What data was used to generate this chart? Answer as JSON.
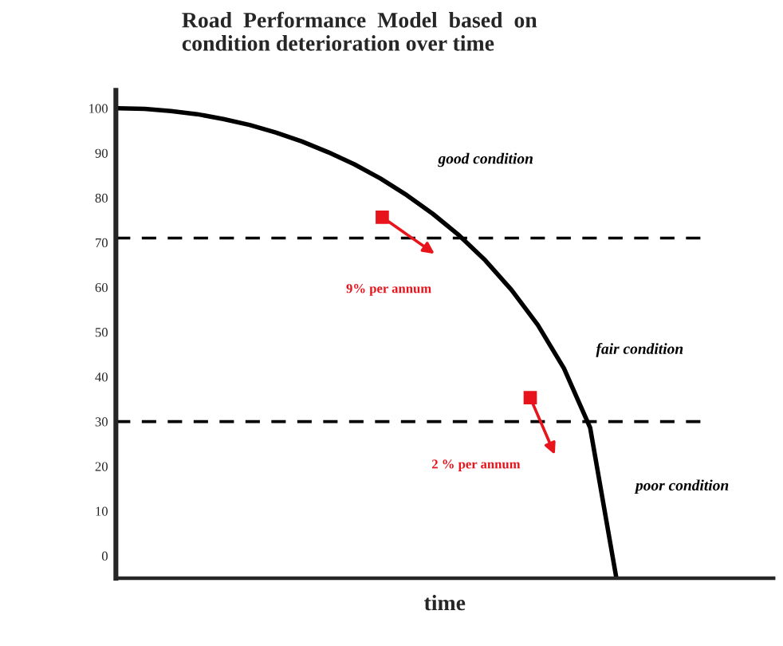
{
  "chart_data": {
    "type": "line",
    "title": "Road  Performance  Model  based  on\ncondition deterioration over time",
    "xlabel": "time",
    "categories": [
      null,
      null,
      null,
      null,
      null,
      null,
      null,
      null,
      null,
      null,
      null,
      null,
      null,
      null,
      null,
      null,
      null,
      null,
      null,
      null,
      null,
      null,
      null,
      null,
      null,
      null
    ],
    "series": [
      {
        "color": "#000000",
        "values": [
          100,
          99.9,
          99.4,
          98.7,
          97.6,
          96.3,
          94.6,
          92.6,
          90.2,
          87.5,
          84.3,
          80.6,
          76.4,
          71.6,
          66.0,
          59.4,
          51.6,
          41.9,
          28.6,
          -5,
          null,
          null,
          null,
          null,
          null,
          null
        ]
      }
    ],
    "ylim": [
      -5,
      104
    ],
    "yticks": [
      0,
      10,
      20,
      30,
      40,
      50,
      60,
      70,
      80,
      90,
      100
    ],
    "ref_lines": [
      {
        "axis": "y",
        "value": 71,
        "color": "#000000",
        "line_style": "dashed"
      },
      {
        "axis": "y",
        "value": 30,
        "color": "#000000",
        "line_style": "dashed"
      }
    ],
    "annotations": [
      "good condition",
      "fair condition",
      "poor condition",
      "9% per annum",
      "2 % per annum"
    ],
    "grid": false,
    "legend": false,
    "marker": "none",
    "line_style": "solid"
  }
}
